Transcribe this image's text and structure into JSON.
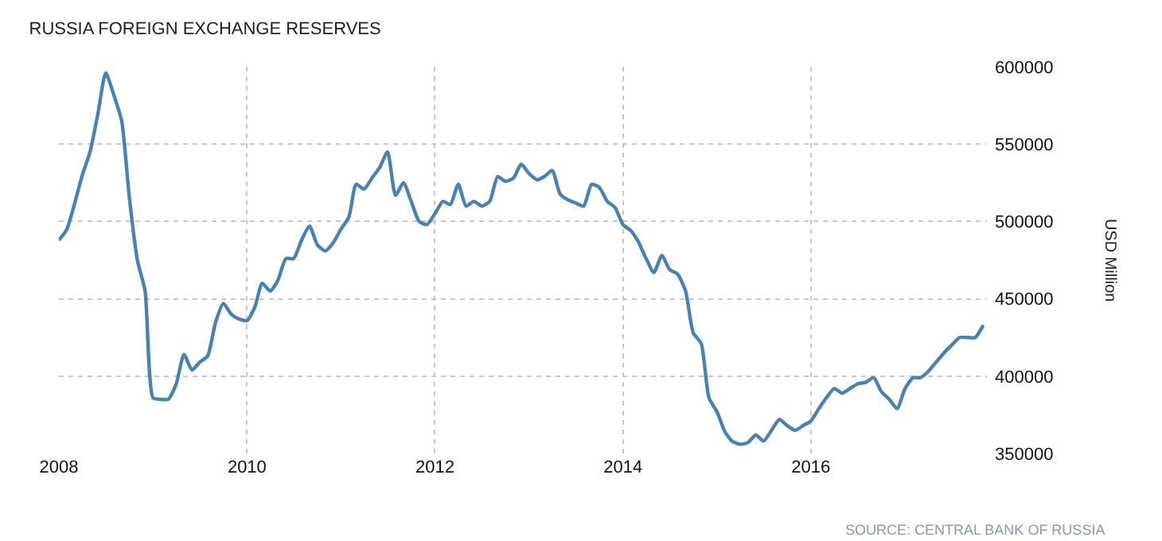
{
  "chart_data": {
    "type": "line",
    "title": "RUSSIA FOREIGN EXCHANGE RESERVES",
    "ylabel": "USD Million",
    "annotations": [
      "SOURCE: CENTRAL BANK OF RUSSIA"
    ],
    "x": [
      "2008-01",
      "2008-02",
      "2008-04",
      "2008-05",
      "2008-06",
      "2008-07",
      "2008-08",
      "2008-09",
      "2008-10",
      "2008-11",
      "2008-12",
      "2009-01",
      "2009-02",
      "2009-03",
      "2009-04",
      "2009-05",
      "2009-06",
      "2009-07",
      "2009-08",
      "2009-09",
      "2009-10",
      "2009-11",
      "2009-12",
      "2010-01",
      "2010-02",
      "2010-03",
      "2010-04",
      "2010-05",
      "2010-06",
      "2010-07",
      "2010-08",
      "2010-09",
      "2010-10",
      "2010-11",
      "2010-12",
      "2011-01",
      "2011-02",
      "2011-03",
      "2011-04",
      "2011-05",
      "2011-06",
      "2011-07",
      "2011-08",
      "2011-09",
      "2011-10",
      "2011-11",
      "2011-12",
      "2012-01",
      "2012-02",
      "2012-03",
      "2012-04",
      "2012-05",
      "2012-06",
      "2012-07",
      "2012-08",
      "2012-09",
      "2012-10",
      "2012-11",
      "2012-12",
      "2013-01",
      "2013-02",
      "2013-03",
      "2013-04",
      "2013-05",
      "2013-06",
      "2013-07",
      "2013-08",
      "2013-09",
      "2013-10",
      "2013-11",
      "2013-12",
      "2014-01",
      "2014-02",
      "2014-03",
      "2014-04",
      "2014-05",
      "2014-06",
      "2014-07",
      "2014-08",
      "2014-09",
      "2014-10",
      "2014-11",
      "2014-12",
      "2015-01",
      "2015-02",
      "2015-03",
      "2015-04",
      "2015-05",
      "2015-06",
      "2015-07",
      "2015-08",
      "2015-09",
      "2015-10",
      "2015-11",
      "2015-12",
      "2016-01",
      "2016-02",
      "2016-03",
      "2016-04",
      "2016-05",
      "2016-06",
      "2016-07",
      "2016-08",
      "2016-09",
      "2016-10",
      "2016-11",
      "2016-12",
      "2017-01",
      "2017-02",
      "2017-03",
      "2017-04",
      "2017-05",
      "2017-06",
      "2017-07",
      "2017-08",
      "2017-09",
      "2017-10",
      "2017-11"
    ],
    "series": [
      {
        "color": "#4682b4",
        "values": [
          488000,
          495000,
          530000,
          545000,
          570000,
          596000,
          582000,
          565000,
          515000,
          475000,
          455000,
          386000,
          385000,
          385000,
          395000,
          414000,
          404000,
          409000,
          413000,
          435000,
          447000,
          440000,
          437000,
          436000,
          445000,
          460000,
          455000,
          462000,
          476000,
          476000,
          488000,
          497000,
          485000,
          481000,
          486000,
          495000,
          503000,
          524000,
          521000,
          528000,
          535000,
          545000,
          517000,
          525000,
          513000,
          500000,
          498000,
          505000,
          513000,
          511000,
          524000,
          510000,
          513000,
          510000,
          513000,
          529000,
          526000,
          528000,
          537000,
          531000,
          527000,
          529000,
          533000,
          518000,
          514000,
          512000,
          510000,
          524000,
          522000,
          513000,
          509000,
          498000,
          494000,
          487000,
          476000,
          467000,
          478000,
          469000,
          466000,
          455000,
          428000,
          421000,
          386000,
          377000,
          364000,
          358000,
          356000,
          357000,
          362000,
          358000,
          365000,
          372000,
          368000,
          365000,
          368000,
          371000,
          379000,
          386000,
          392000,
          389000,
          392000,
          395000,
          396000,
          399000,
          390000,
          385000,
          379000,
          392000,
          399000,
          399000,
          403000,
          409000,
          415000,
          420000,
          425000,
          425000,
          425000,
          433000
        ]
      }
    ],
    "xlim": [
      "2008-01",
      "2017-11-15"
    ],
    "xticks": [
      "2008",
      "2010",
      "2012",
      "2014",
      "2016"
    ],
    "ylim": [
      350000,
      600000
    ],
    "yticks": [
      350000,
      400000,
      450000,
      500000,
      550000,
      600000
    ],
    "grid": true,
    "legend": false,
    "marker": "none",
    "line_style": "solid"
  }
}
